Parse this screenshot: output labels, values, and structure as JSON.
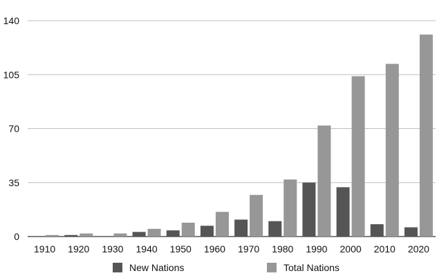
{
  "chart_data": {
    "type": "bar",
    "title": "",
    "xlabel": "",
    "ylabel": "",
    "categories": [
      "1910",
      "1920",
      "1930",
      "1940",
      "1950",
      "1960",
      "1970",
      "1980",
      "1990",
      "2000",
      "2010",
      "2020"
    ],
    "series": [
      {
        "name": "New Nations",
        "color": "#555555",
        "values": [
          0,
          1,
          0,
          3,
          4,
          7,
          11,
          10,
          35,
          32,
          8,
          6
        ]
      },
      {
        "name": "Total Nations",
        "color": "#979797",
        "values": [
          1,
          2,
          2,
          5,
          9,
          16,
          27,
          37,
          72,
          104,
          112,
          131
        ]
      }
    ],
    "ylim": [
      0,
      140
    ],
    "yticks": [
      "0",
      "35",
      "70",
      "105",
      "140"
    ],
    "grid": true,
    "legend_position": "bottom"
  }
}
